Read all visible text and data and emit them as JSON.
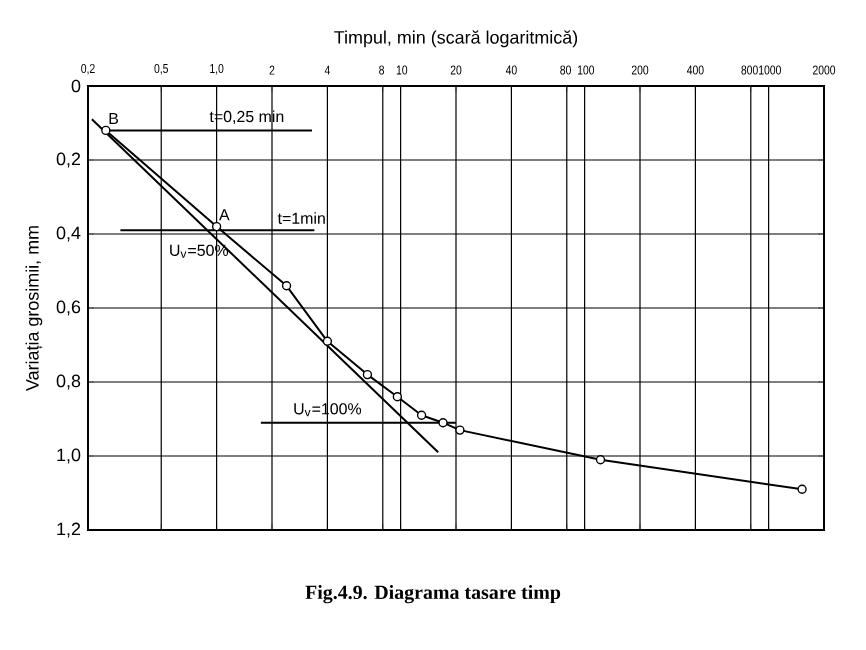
{
  "chart_data": {
    "type": "line",
    "xlabel": "Timpul, min (scară logaritmică)",
    "ylabel": "Variația grosimii, mm",
    "log": "x",
    "grid": true,
    "xlim": [
      0.2,
      2000
    ],
    "ylim": [
      1.2,
      0
    ],
    "xticks": [
      {
        "value": 0.2,
        "label": "0,2"
      },
      {
        "value": 0.5,
        "label": "0,5"
      },
      {
        "value": 1,
        "label": "1,0"
      },
      2,
      4,
      8,
      10,
      20,
      40,
      80,
      100,
      200,
      400,
      800,
      1000,
      2000
    ],
    "yticks": [
      0,
      {
        "value": 0.2,
        "label": "0,2"
      },
      {
        "value": 0.4,
        "label": "0,4"
      },
      {
        "value": 0.6,
        "label": "0,6"
      },
      {
        "value": 0.8,
        "label": "0,8"
      },
      {
        "value": 1.0,
        "label": "1,0"
      },
      {
        "value": 1.2,
        "label": "1,2"
      }
    ],
    "series": [
      {
        "color": "#000000",
        "marker": "circle",
        "line_style": "solid",
        "x": [
          0.25,
          1.0,
          2.4,
          4,
          6.6,
          9.6,
          13,
          17,
          21,
          122,
          1520
        ],
        "values": [
          0.12,
          0.38,
          0.54,
          0.69,
          0.78,
          0.84,
          0.89,
          0.91,
          0.93,
          1.01,
          1.09
        ]
      },
      {
        "color": "#000000",
        "marker": "none",
        "line_style": "solid",
        "x": [
          0.21,
          16
        ],
        "values": [
          0.09,
          0.99
        ]
      },
      {
        "color": "#000000",
        "marker": "none",
        "line_style": "solid",
        "x": [
          0.25,
          3.3
        ],
        "values": [
          0.12,
          0.12
        ]
      },
      {
        "color": "#000000",
        "marker": "none",
        "line_style": "solid",
        "x": [
          0.3,
          3.4
        ],
        "values": [
          0.39,
          0.39
        ]
      },
      {
        "color": "#000000",
        "marker": "none",
        "line_style": "solid",
        "x": [
          1.74,
          20
        ],
        "values": [
          0.91,
          0.91
        ]
      }
    ],
    "annotations": [
      {
        "text": "B",
        "x": 0.25,
        "y": 0.12
      },
      {
        "text": "t=0,25 min",
        "x": 1.46,
        "y": 0.12
      },
      {
        "text": "A",
        "x": 1.0,
        "y": 0.38
      },
      {
        "text": "t=1min",
        "x": 2.9,
        "y": 0.39
      },
      {
        "text": "U$_{v}$=50%",
        "x": 0.8,
        "y": 0.39
      },
      {
        "text": "U$_{v}$=100%",
        "x": 4.0,
        "y": 0.91
      },
      "Fig.4.9. Diagrama tasare timp"
    ]
  }
}
